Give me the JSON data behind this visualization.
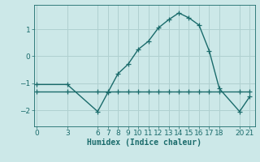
{
  "xlabel": "Humidex (Indice chaleur)",
  "background_color": "#cce8e8",
  "grid_color": "#b0d0d0",
  "line_color": "#1a6b6b",
  "xticks": [
    0,
    3,
    6,
    7,
    8,
    9,
    10,
    11,
    12,
    13,
    14,
    15,
    16,
    17,
    18,
    20,
    21
  ],
  "yticks": [
    -2,
    -1,
    0,
    1
  ],
  "ylim": [
    -2.6,
    1.9
  ],
  "xlim": [
    -0.3,
    21.5
  ],
  "curve1_x": [
    0,
    3,
    6,
    7,
    8,
    9,
    10,
    11,
    12,
    13,
    14,
    15,
    16,
    17,
    18,
    20,
    21
  ],
  "curve1_y": [
    -1.05,
    -1.05,
    -2.05,
    -1.35,
    -0.65,
    -0.3,
    0.25,
    0.55,
    1.05,
    1.35,
    1.6,
    1.42,
    1.15,
    0.2,
    -1.2,
    -2.05,
    -1.5
  ],
  "curve2_x": [
    0,
    3,
    6,
    7,
    8,
    9,
    10,
    11,
    12,
    13,
    14,
    15,
    16,
    17,
    18,
    20,
    21
  ],
  "curve2_y": [
    -1.3,
    -1.3,
    -1.3,
    -1.3,
    -1.3,
    -1.3,
    -1.3,
    -1.3,
    -1.3,
    -1.3,
    -1.3,
    -1.3,
    -1.3,
    -1.3,
    -1.3,
    -1.3,
    -1.3
  ],
  "marker_style": "+",
  "marker_size": 4,
  "line_width": 1.0,
  "xlabel_fontsize": 7,
  "tick_fontsize": 6.5
}
